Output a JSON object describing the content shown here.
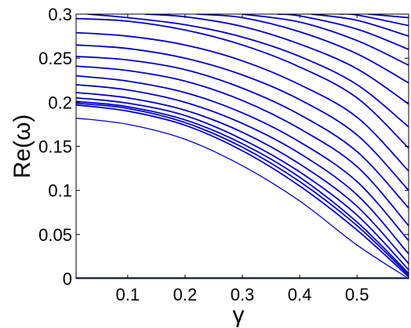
{
  "chart_data": {
    "type": "line",
    "title": "",
    "xlabel": "γ",
    "ylabel": "Re(ω)",
    "xlim": [
      0.01,
      0.59
    ],
    "ylim": [
      0,
      0.3
    ],
    "xticks": [
      0.1,
      0.2,
      0.3,
      0.4,
      0.5
    ],
    "xtick_labels": [
      "0.1",
      "0.2",
      "0.3",
      "0.4",
      "0.5"
    ],
    "yticks": [
      0,
      0.05,
      0.1,
      0.15,
      0.2,
      0.25,
      0.3
    ],
    "ytick_labels": [
      "0",
      "0.05",
      "0.1",
      "0.15",
      "0.2",
      "0.25",
      "0.3"
    ],
    "grid": false,
    "line_color": "#0000cc",
    "series": [
      {
        "points": [
          [
            0.01,
            0.182
          ],
          [
            0.1,
            0.175
          ],
          [
            0.2,
            0.158
          ],
          [
            0.3,
            0.128
          ],
          [
            0.4,
            0.088
          ],
          [
            0.5,
            0.038
          ],
          [
            0.59,
            0.0
          ]
        ]
      },
      {
        "points": [
          [
            0.01,
            0.197
          ],
          [
            0.1,
            0.19
          ],
          [
            0.2,
            0.174
          ],
          [
            0.3,
            0.145
          ],
          [
            0.4,
            0.105
          ],
          [
            0.5,
            0.055
          ],
          [
            0.59,
            0.002
          ]
        ]
      },
      {
        "points": [
          [
            0.01,
            0.199
          ],
          [
            0.1,
            0.193
          ],
          [
            0.2,
            0.177
          ],
          [
            0.3,
            0.149
          ],
          [
            0.4,
            0.11
          ],
          [
            0.5,
            0.06
          ],
          [
            0.59,
            0.004
          ]
        ]
      },
      {
        "points": [
          [
            0.01,
            0.201
          ],
          [
            0.1,
            0.195
          ],
          [
            0.2,
            0.18
          ],
          [
            0.3,
            0.153
          ],
          [
            0.4,
            0.115
          ],
          [
            0.5,
            0.064
          ],
          [
            0.59,
            0.006
          ]
        ]
      },
      {
        "points": [
          [
            0.01,
            0.205
          ],
          [
            0.1,
            0.199
          ],
          [
            0.2,
            0.185
          ],
          [
            0.3,
            0.158
          ],
          [
            0.4,
            0.121
          ],
          [
            0.5,
            0.072
          ],
          [
            0.59,
            0.01
          ]
        ]
      },
      {
        "points": [
          [
            0.01,
            0.211
          ],
          [
            0.1,
            0.205
          ],
          [
            0.2,
            0.191
          ],
          [
            0.3,
            0.166
          ],
          [
            0.4,
            0.13
          ],
          [
            0.5,
            0.082
          ],
          [
            0.59,
            0.017
          ]
        ]
      },
      {
        "points": [
          [
            0.01,
            0.22
          ],
          [
            0.1,
            0.214
          ],
          [
            0.2,
            0.2
          ],
          [
            0.3,
            0.176
          ],
          [
            0.4,
            0.142
          ],
          [
            0.5,
            0.095
          ],
          [
            0.59,
            0.028
          ]
        ]
      },
      {
        "points": [
          [
            0.01,
            0.23
          ],
          [
            0.1,
            0.224
          ],
          [
            0.2,
            0.211
          ],
          [
            0.3,
            0.188
          ],
          [
            0.4,
            0.155
          ],
          [
            0.5,
            0.11
          ],
          [
            0.59,
            0.043
          ]
        ]
      },
      {
        "points": [
          [
            0.01,
            0.241
          ],
          [
            0.1,
            0.236
          ],
          [
            0.2,
            0.224
          ],
          [
            0.3,
            0.202
          ],
          [
            0.4,
            0.17
          ],
          [
            0.5,
            0.127
          ],
          [
            0.59,
            0.06
          ]
        ]
      },
      {
        "points": [
          [
            0.01,
            0.252
          ],
          [
            0.1,
            0.248
          ],
          [
            0.2,
            0.237
          ],
          [
            0.3,
            0.216
          ],
          [
            0.4,
            0.186
          ],
          [
            0.5,
            0.144
          ],
          [
            0.59,
            0.08
          ]
        ]
      },
      {
        "points": [
          [
            0.01,
            0.265
          ],
          [
            0.1,
            0.261
          ],
          [
            0.2,
            0.25
          ],
          [
            0.3,
            0.231
          ],
          [
            0.4,
            0.203
          ],
          [
            0.5,
            0.163
          ],
          [
            0.59,
            0.1
          ]
        ]
      },
      {
        "points": [
          [
            0.01,
            0.279
          ],
          [
            0.1,
            0.275
          ],
          [
            0.2,
            0.265
          ],
          [
            0.3,
            0.247
          ],
          [
            0.4,
            0.22
          ],
          [
            0.5,
            0.183
          ],
          [
            0.59,
            0.122
          ]
        ]
      },
      {
        "points": [
          [
            0.01,
            0.295
          ],
          [
            0.1,
            0.292
          ],
          [
            0.2,
            0.282
          ],
          [
            0.3,
            0.265
          ],
          [
            0.4,
            0.24
          ],
          [
            0.5,
            0.205
          ],
          [
            0.59,
            0.148
          ]
        ]
      },
      {
        "points": [
          [
            0.03,
            0.3
          ],
          [
            0.1,
            0.296
          ],
          [
            0.2,
            0.288
          ],
          [
            0.3,
            0.274
          ],
          [
            0.4,
            0.252
          ],
          [
            0.5,
            0.22
          ],
          [
            0.59,
            0.172
          ]
        ]
      },
      {
        "points": [
          [
            0.13,
            0.3
          ],
          [
            0.2,
            0.297
          ],
          [
            0.3,
            0.286
          ],
          [
            0.4,
            0.266
          ],
          [
            0.5,
            0.238
          ],
          [
            0.59,
            0.198
          ]
        ]
      },
      {
        "points": [
          [
            0.22,
            0.3
          ],
          [
            0.3,
            0.296
          ],
          [
            0.4,
            0.28
          ],
          [
            0.5,
            0.255
          ],
          [
            0.59,
            0.222
          ]
        ]
      },
      {
        "points": [
          [
            0.3,
            0.3
          ],
          [
            0.4,
            0.291
          ],
          [
            0.5,
            0.27
          ],
          [
            0.59,
            0.242
          ]
        ]
      },
      {
        "points": [
          [
            0.36,
            0.3
          ],
          [
            0.4,
            0.298
          ],
          [
            0.5,
            0.283
          ],
          [
            0.59,
            0.26
          ]
        ]
      },
      {
        "points": [
          [
            0.42,
            0.3
          ],
          [
            0.5,
            0.293
          ],
          [
            0.59,
            0.275
          ]
        ]
      },
      {
        "points": [
          [
            0.47,
            0.3
          ],
          [
            0.5,
            0.299
          ],
          [
            0.59,
            0.287
          ]
        ]
      },
      {
        "points": [
          [
            0.52,
            0.3
          ],
          [
            0.59,
            0.296
          ]
        ]
      },
      {
        "points": [
          [
            0.01,
            0.0006
          ],
          [
            0.59,
            0.0006
          ]
        ]
      }
    ]
  }
}
